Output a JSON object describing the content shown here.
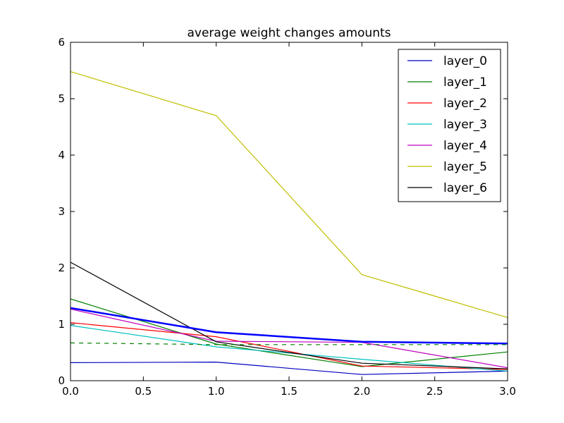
{
  "chart_data": {
    "type": "line",
    "title": "average weight changes amounts",
    "xlabel": "",
    "ylabel": "",
    "x": [
      0.0,
      1.0,
      2.0,
      3.0
    ],
    "xlim": [
      0.0,
      3.0
    ],
    "ylim": [
      0,
      6
    ],
    "xticks": [
      0.0,
      0.5,
      1.0,
      1.5,
      2.0,
      2.5,
      3.0
    ],
    "xtick_labels": [
      "0.0",
      "0.5",
      "1.0",
      "1.5",
      "2.0",
      "2.5",
      "3.0"
    ],
    "yticks": [
      0,
      1,
      2,
      3,
      4,
      5,
      6
    ],
    "ytick_labels": [
      "0",
      "1",
      "2",
      "3",
      "4",
      "5",
      "6"
    ],
    "grid": false,
    "legend_position": "top-right",
    "series": [
      {
        "name": "layer_0",
        "color": "#0000bf",
        "values": [
          0.32,
          0.33,
          0.11,
          0.17
        ]
      },
      {
        "name": "layer_1",
        "color": "#007f00",
        "values": [
          1.45,
          0.65,
          0.25,
          0.51
        ]
      },
      {
        "name": "layer_2",
        "color": "#ff0000",
        "values": [
          1.03,
          0.78,
          0.26,
          0.2
        ]
      },
      {
        "name": "layer_3",
        "color": "#00bfbf",
        "values": [
          0.98,
          0.6,
          0.38,
          0.17
        ]
      },
      {
        "name": "layer_4",
        "color": "#bf00bf",
        "values": [
          1.27,
          0.7,
          0.68,
          0.23
        ]
      },
      {
        "name": "layer_5",
        "color": "#bfbf00",
        "values": [
          5.48,
          4.7,
          1.88,
          1.12
        ]
      },
      {
        "name": "layer_6",
        "color": "#000000",
        "values": [
          2.1,
          0.69,
          0.31,
          0.21
        ]
      }
    ],
    "extra_lines": [
      {
        "style": "solid-thick",
        "color": "#0000ff",
        "values": [
          1.29,
          0.86,
          0.69,
          0.66
        ]
      },
      {
        "style": "dashed",
        "color": "#007f00",
        "values": [
          0.67,
          0.64,
          0.64,
          0.64
        ]
      }
    ]
  }
}
